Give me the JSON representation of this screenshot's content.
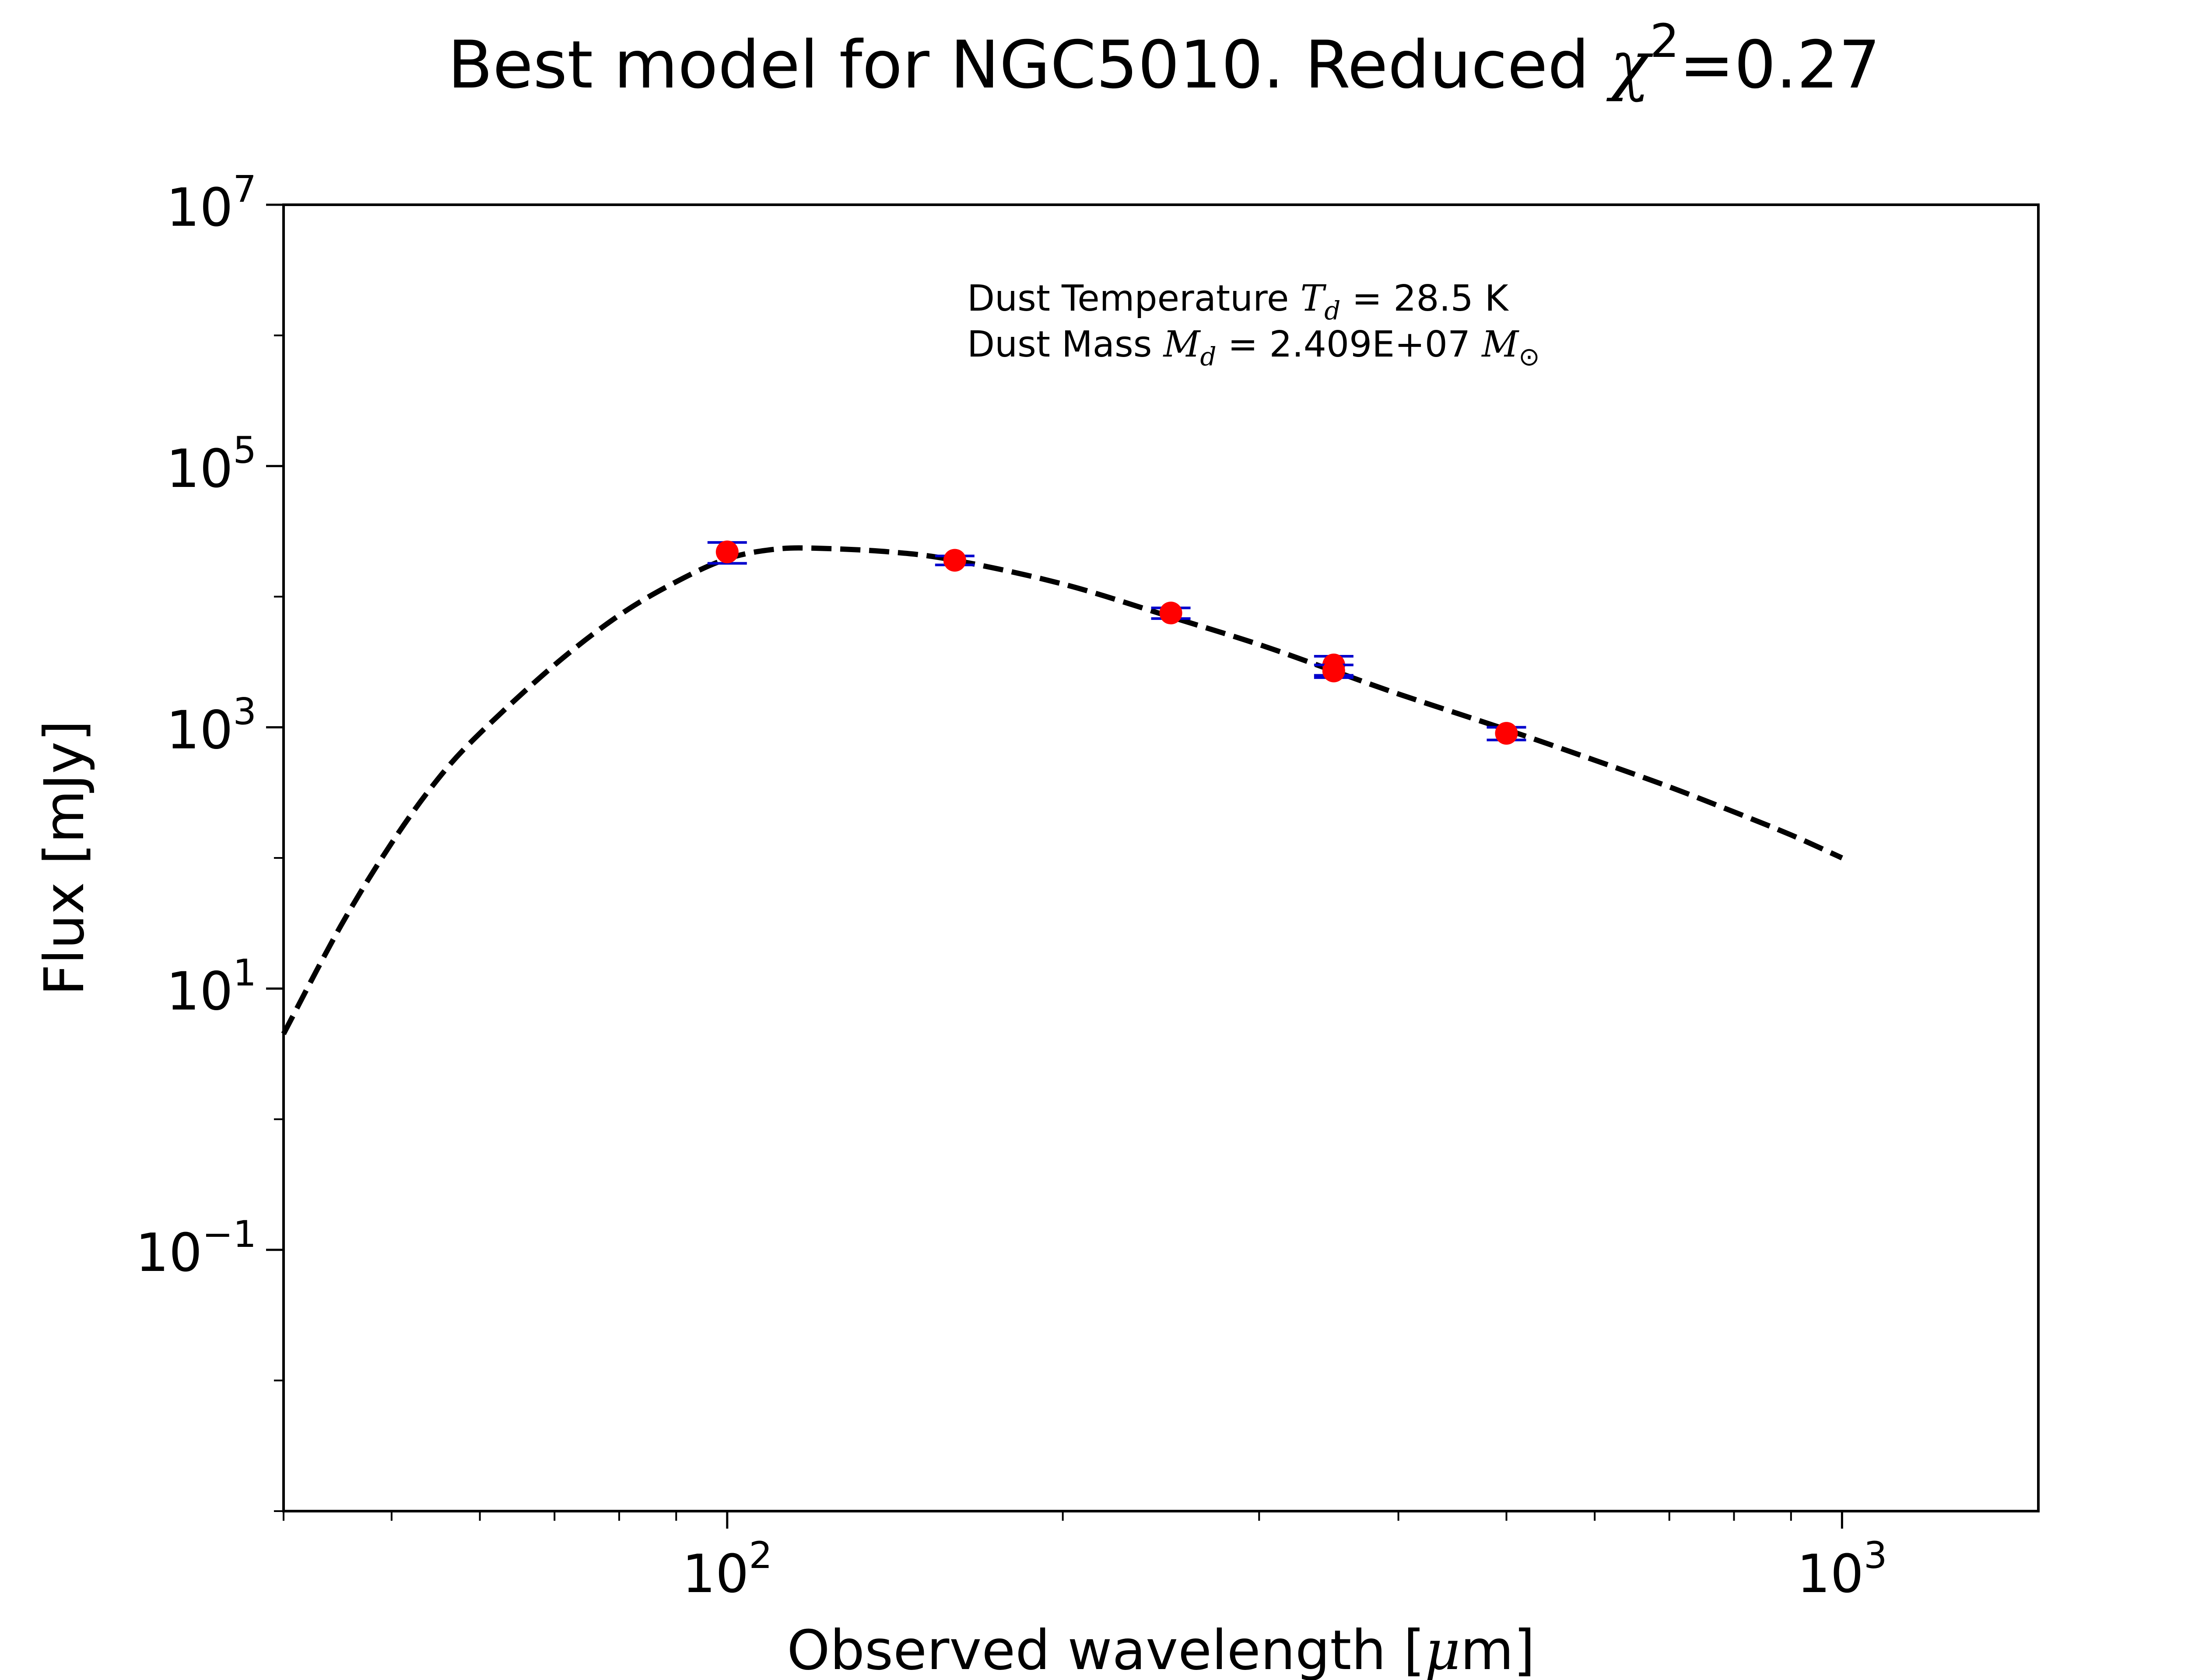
{
  "chart_data": {
    "type": "scatter",
    "title": {
      "prefix": "Best model for NGC5010. Reduced ",
      "symbol": "χ",
      "sup": "2",
      "suffix": "=0.27"
    },
    "xlabel": {
      "prefix": "Observed wavelength [",
      "symbol": "μ",
      "suffix": "m]"
    },
    "ylabel": "Flux [mJy]",
    "x_scale": "log",
    "y_scale": "log",
    "xlim": [
      40,
      1500
    ],
    "ylim": [
      0.001,
      10000000
    ],
    "x_ticks": [
      {
        "value": 100,
        "base": "10",
        "exp": "2"
      },
      {
        "value": 1000,
        "base": "10",
        "exp": "3"
      }
    ],
    "y_ticks": [
      {
        "value": 0.1,
        "base": "10",
        "exp": "−1"
      },
      {
        "value": 10,
        "base": "10",
        "exp": "1"
      },
      {
        "value": 1000,
        "base": "10",
        "exp": "3"
      },
      {
        "value": 100000,
        "base": "10",
        "exp": "5"
      },
      {
        "value": 10000000,
        "base": "10",
        "exp": "7"
      }
    ],
    "grid": false,
    "legend": "none",
    "annotations": {
      "temperature": {
        "prefix": "Dust Temperature ",
        "sym": "T",
        "sub": "d",
        "suffix": " = 28.5 K"
      },
      "mass": {
        "prefix": "Dust Mass ",
        "sym": "M",
        "sub": "d",
        "middle": " = 2.409E+07 ",
        "unit_sym": "M",
        "unit_sub": "⊙"
      }
    },
    "model": {
      "style": "dashed",
      "color": "#000000",
      "x": [
        40,
        45,
        50,
        55,
        60,
        70,
        80,
        90,
        100,
        110,
        120,
        140,
        160,
        200,
        250,
        300,
        350,
        400,
        500,
        600,
        700,
        800,
        900,
        1000
      ],
      "y": [
        4.5,
        30,
        130,
        400,
        900,
        3000,
        7200,
        13000,
        19500,
        23000,
        23500,
        22000,
        19000,
        12500,
        7000,
        4300,
        2700,
        1800,
        960,
        560,
        350,
        225,
        150,
        100
      ]
    },
    "observations": {
      "marker_color": "#ff0000",
      "errorbar_color": "#0000cc",
      "points": [
        {
          "x": 100,
          "y": 22000,
          "yerr": 4000
        },
        {
          "x": 160,
          "y": 19000,
          "yerr": 1500
        },
        {
          "x": 250,
          "y": 7500,
          "yerr": 700
        },
        {
          "x": 350,
          "y": 3000,
          "yerr": 500
        },
        {
          "x": 350,
          "y": 2700,
          "yerr": 300
        },
        {
          "x": 500,
          "y": 900,
          "yerr": 100
        }
      ]
    }
  }
}
